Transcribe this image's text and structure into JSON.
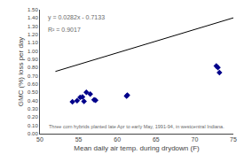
{
  "chart_data": {
    "type": "scatter",
    "xlabel": "Mean daily air temp. during drydown (F)",
    "ylabel": "GMC (%) loss per day",
    "xlim": [
      50,
      75
    ],
    "ylim": [
      0.0,
      1.5
    ],
    "xticks": [
      50,
      55,
      60,
      65,
      70,
      75
    ],
    "yticks": [
      {
        "value": 0.0,
        "label": "0.00"
      },
      {
        "value": 0.1,
        "label": "0.10"
      },
      {
        "value": 0.2,
        "label": "0.20"
      },
      {
        "value": 0.3,
        "label": "0.30"
      },
      {
        "value": 0.4,
        "label": "0.40"
      },
      {
        "value": 0.5,
        "label": "0.50"
      },
      {
        "value": 0.6,
        "label": "0.60"
      },
      {
        "value": 0.7,
        "label": "0.70"
      },
      {
        "value": 0.8,
        "label": "0.80"
      },
      {
        "value": 0.9,
        "label": "0.90"
      },
      {
        "value": 1.0,
        "label": "1.00"
      },
      {
        "value": 1.1,
        "label": "1.10"
      },
      {
        "value": 1.2,
        "label": "1.20"
      },
      {
        "value": 1.3,
        "label": "1.30"
      },
      {
        "value": 1.4,
        "label": "1.40"
      },
      {
        "value": 1.5,
        "label": "1.50"
      }
    ],
    "grid": false,
    "series": [
      {
        "type": "scatter",
        "marker": "diamond",
        "color": "#00008B",
        "x": [
          54.2,
          54.8,
          55.2,
          55.5,
          55.7,
          56.0,
          56.5,
          57.0,
          57.2,
          61.2,
          61.3,
          72.8,
          73.0,
          73.2
        ],
        "values": [
          0.385,
          0.4,
          0.44,
          0.445,
          0.39,
          0.5,
          0.48,
          0.41,
          0.405,
          0.455,
          0.465,
          0.82,
          0.8,
          0.74
        ]
      },
      {
        "type": "line",
        "color": "black",
        "line_style": "solid",
        "x": [
          52,
          75
        ],
        "values": [
          0.7531,
          1.4017
        ]
      }
    ],
    "annotations": [
      "y = 0.0282x - 0.7133",
      "R² = 0.9017",
      "Three corn hybrids planted late Apr to early May, 1991-94, in westcentral Indiana."
    ]
  }
}
